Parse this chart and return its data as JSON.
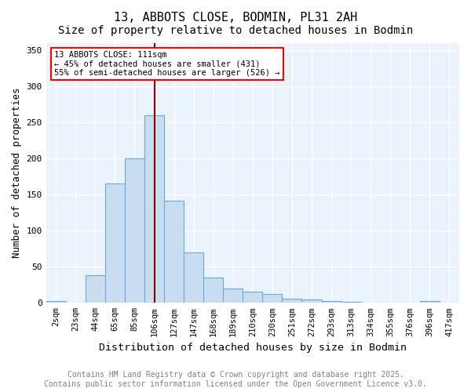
{
  "title1": "13, ABBOTS CLOSE, BODMIN, PL31 2AH",
  "title2": "Size of property relative to detached houses in Bodmin",
  "xlabel": "Distribution of detached houses by size in Bodmin",
  "ylabel": "Number of detached properties",
  "bin_labels": [
    "2sqm",
    "23sqm",
    "44sqm",
    "65sqm",
    "85sqm",
    "106sqm",
    "127sqm",
    "147sqm",
    "168sqm",
    "189sqm",
    "210sqm",
    "230sqm",
    "251sqm",
    "272sqm",
    "293sqm",
    "313sqm",
    "334sqm",
    "355sqm",
    "376sqm",
    "396sqm",
    "417sqm"
  ],
  "bar_heights": [
    2,
    0,
    38,
    165,
    200,
    260,
    142,
    70,
    35,
    20,
    16,
    12,
    6,
    5,
    3,
    1,
    0,
    0,
    0,
    2,
    0
  ],
  "bar_color": "#c9ddf0",
  "bar_edge_color": "#6aaad4",
  "vline_position": 5,
  "vline_color": "#8b0000",
  "annotation_text": "13 ABBOTS CLOSE: 111sqm\n← 45% of detached houses are smaller (431)\n55% of semi-detached houses are larger (526) →",
  "annotation_box_color": "white",
  "annotation_box_edge_color": "red",
  "ylim": [
    0,
    360
  ],
  "yticks": [
    0,
    50,
    100,
    150,
    200,
    250,
    300,
    350
  ],
  "background_color": "#eaf3fb",
  "footer_text": "Contains HM Land Registry data © Crown copyright and database right 2025.\nContains public sector information licensed under the Open Government Licence v3.0.",
  "title_fontsize": 11,
  "subtitle_fontsize": 10,
  "axis_label_fontsize": 9,
  "tick_fontsize": 7.5,
  "footer_fontsize": 7
}
